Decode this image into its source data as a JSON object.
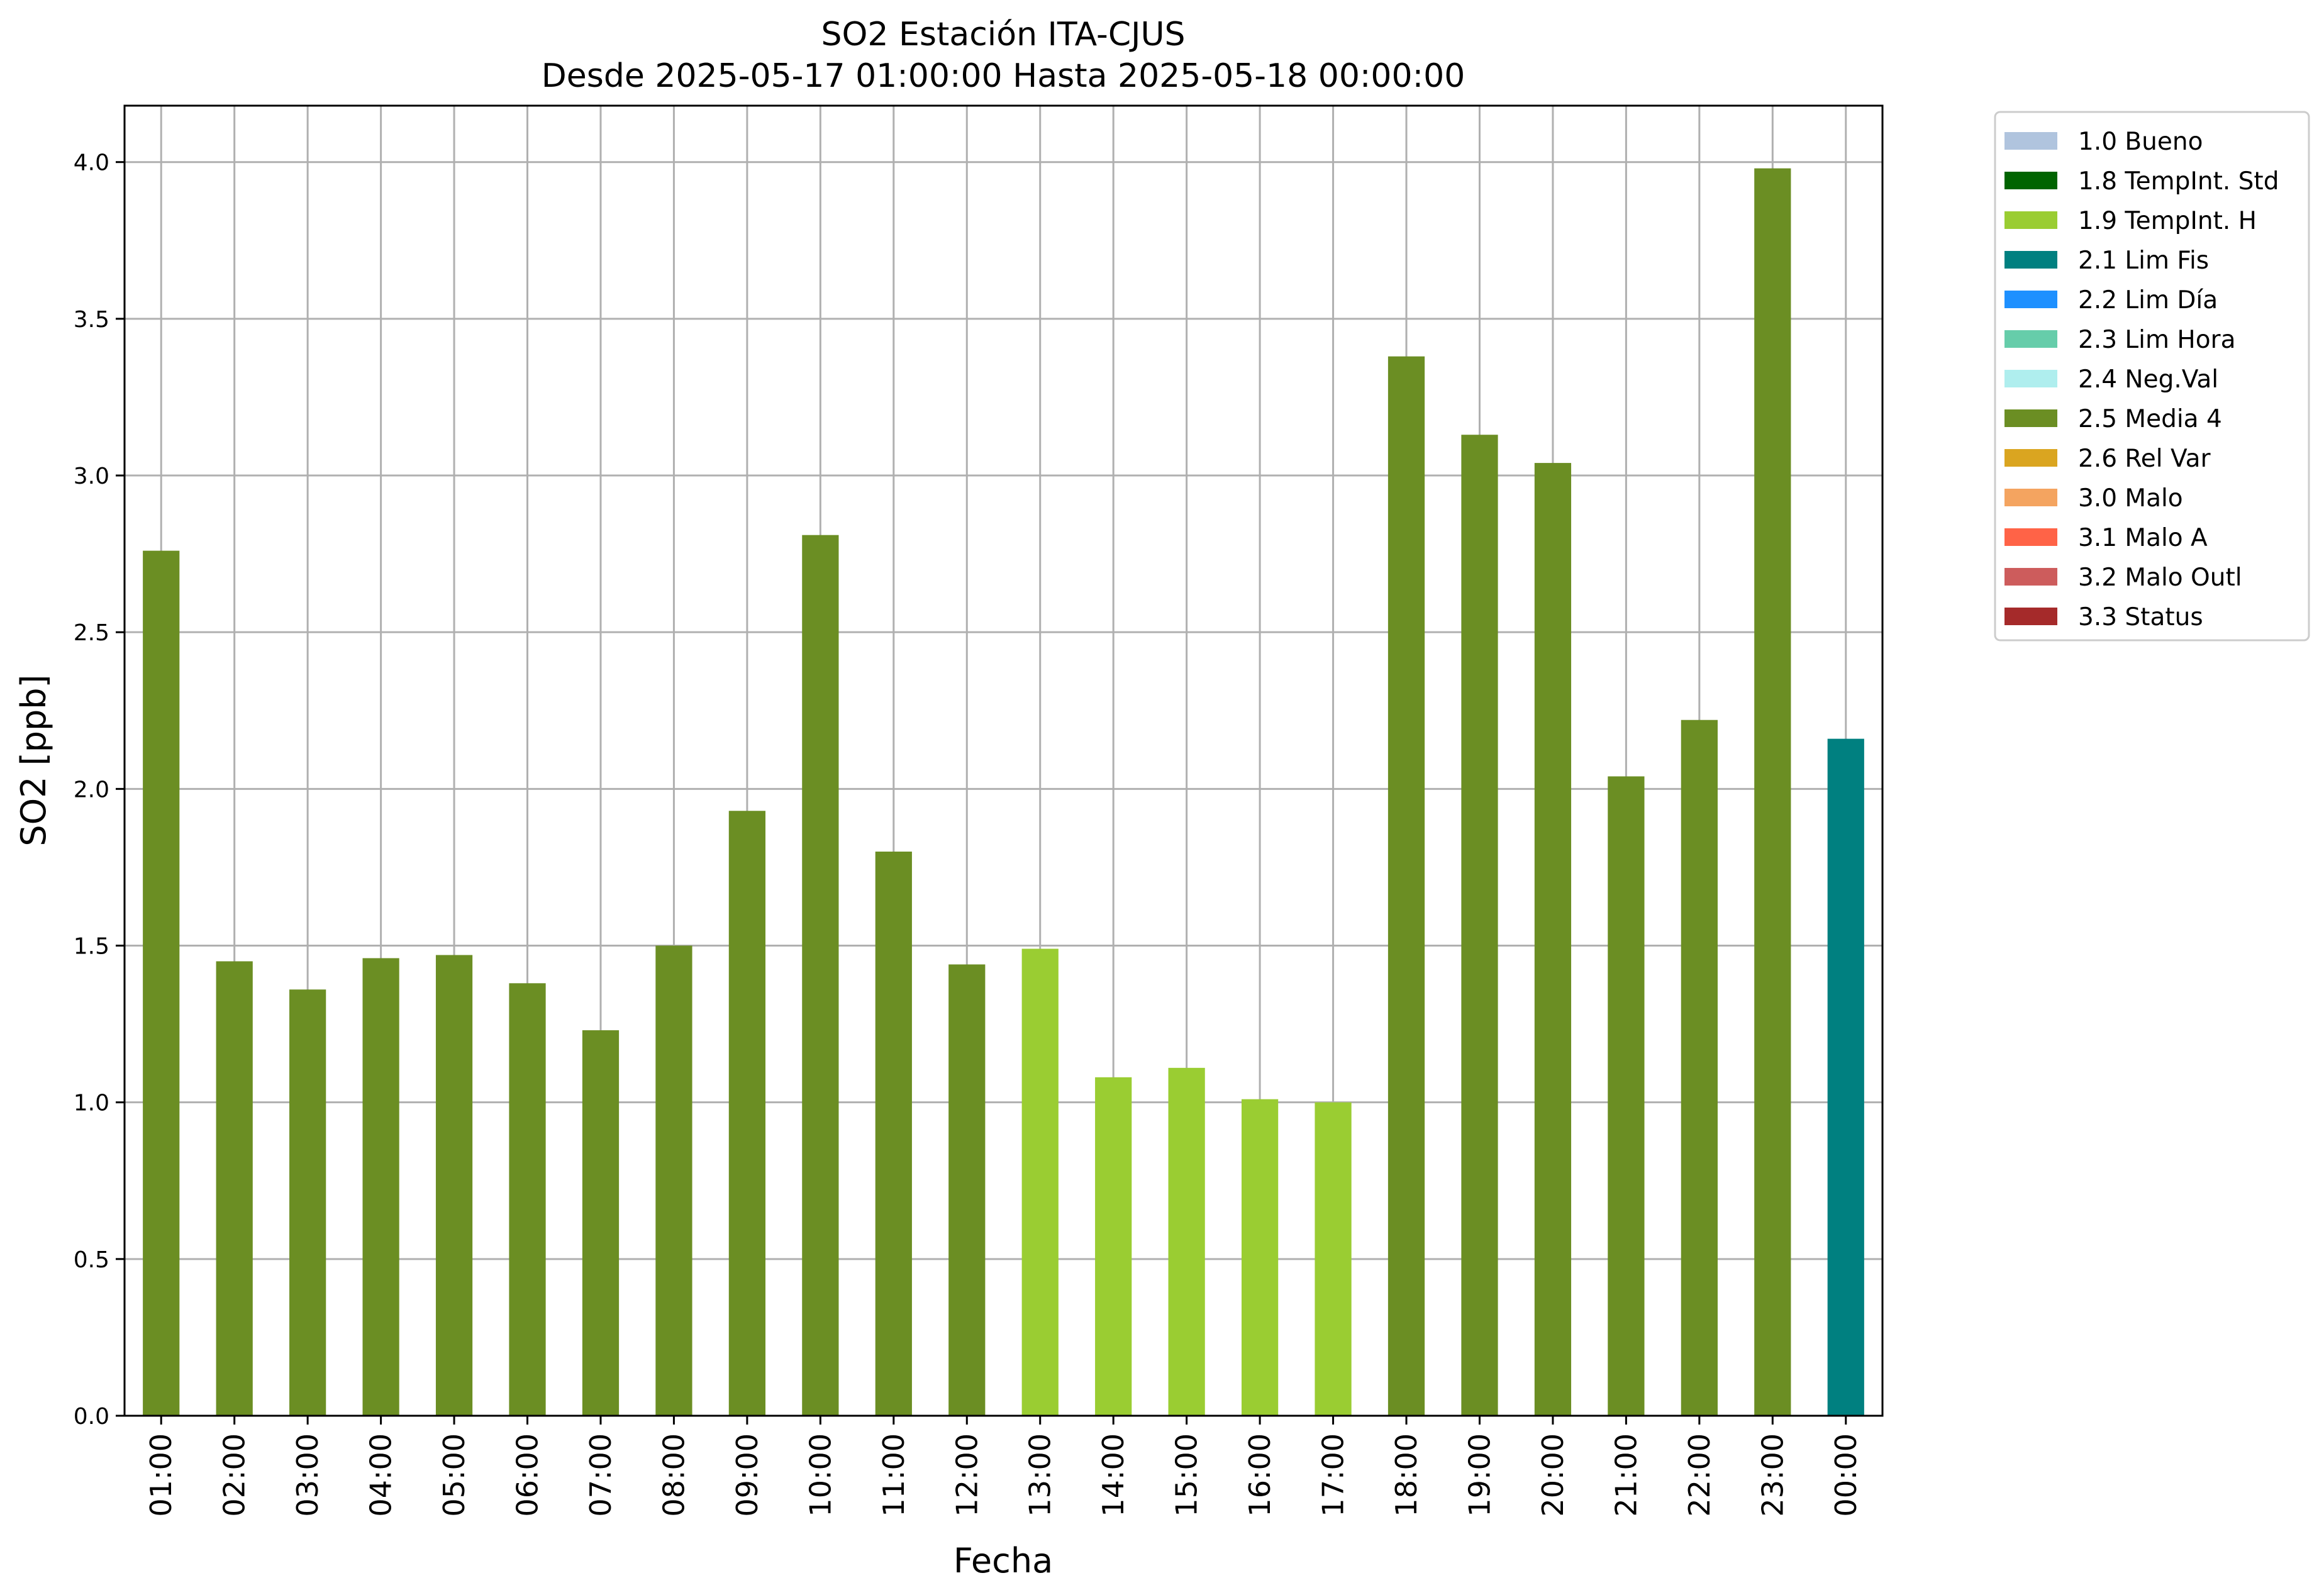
{
  "chart_data": {
    "type": "bar",
    "title": "SO2 Estación ITA-CJUS",
    "subtitle": "Desde 2025-05-17 01:00:00 Hasta 2025-05-18 00:00:00",
    "xlabel": "Fecha",
    "ylabel": "SO2 [ppb]",
    "ylim": [
      0,
      4.18
    ],
    "yticks": [
      "0.0",
      "0.5",
      "1.0",
      "1.5",
      "2.0",
      "2.5",
      "3.0",
      "3.5",
      "4.0"
    ],
    "ytick_values": [
      0,
      0.5,
      1.0,
      1.5,
      2.0,
      2.5,
      3.0,
      3.5,
      4.0
    ],
    "grid": true,
    "legend_position": "outside-right-top",
    "categories": [
      "01:00",
      "02:00",
      "03:00",
      "04:00",
      "05:00",
      "06:00",
      "07:00",
      "08:00",
      "09:00",
      "10:00",
      "11:00",
      "12:00",
      "13:00",
      "14:00",
      "15:00",
      "16:00",
      "17:00",
      "18:00",
      "19:00",
      "20:00",
      "21:00",
      "22:00",
      "23:00",
      "00:00"
    ],
    "values": [
      2.76,
      1.45,
      1.36,
      1.46,
      1.47,
      1.38,
      1.23,
      1.5,
      1.93,
      2.81,
      1.8,
      1.44,
      1.49,
      1.08,
      1.11,
      1.01,
      1.0,
      3.38,
      3.13,
      3.04,
      2.04,
      2.22,
      3.98,
      2.16
    ],
    "bar_flags": [
      "2.5 Media 4",
      "2.5 Media 4",
      "2.5 Media 4",
      "2.5 Media 4",
      "2.5 Media 4",
      "2.5 Media 4",
      "2.5 Media 4",
      "2.5 Media 4",
      "2.5 Media 4",
      "2.5 Media 4",
      "2.5 Media 4",
      "2.5 Media 4",
      "1.9 TempInt. H",
      "1.9 TempInt. H",
      "1.9 TempInt. H",
      "1.9 TempInt. H",
      "1.9 TempInt. H",
      "2.5 Media 4",
      "2.5 Media 4",
      "2.5 Media 4",
      "2.5 Media 4",
      "2.5 Media 4",
      "2.5 Media 4",
      "2.1 Lim Fis"
    ],
    "legend": [
      {
        "label": "1.0 Bueno",
        "color": "#b0c4de"
      },
      {
        "label": "1.8 TempInt. Std",
        "color": "#006400"
      },
      {
        "label": "1.9 TempInt. H",
        "color": "#9acd32"
      },
      {
        "label": "2.1 Lim Fis",
        "color": "#008080"
      },
      {
        "label": "2.2 Lim Día",
        "color": "#1e90ff"
      },
      {
        "label": "2.3 Lim Hora",
        "color": "#66cdaa"
      },
      {
        "label": "2.4 Neg.Val",
        "color": "#afeeee"
      },
      {
        "label": "2.5 Media 4",
        "color": "#6b8e23"
      },
      {
        "label": "2.6 Rel Var",
        "color": "#daa520"
      },
      {
        "label": "3.0 Malo",
        "color": "#f4a460"
      },
      {
        "label": "3.1 Malo A",
        "color": "#ff6347"
      },
      {
        "label": "3.2 Malo Outl",
        "color": "#cd5c5c"
      },
      {
        "label": "3.3 Status",
        "color": "#a52a2a"
      }
    ]
  }
}
